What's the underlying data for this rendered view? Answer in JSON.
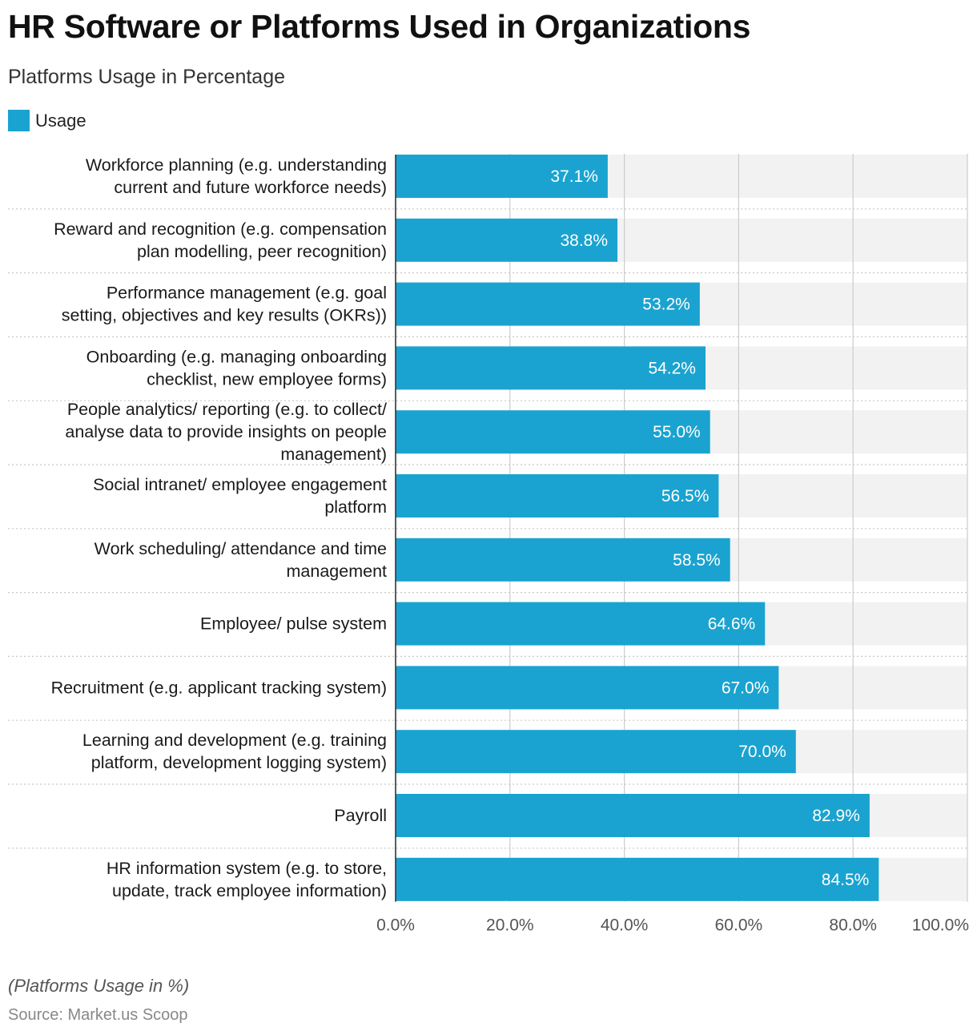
{
  "chart_data": {
    "type": "bar",
    "orientation": "horizontal",
    "title": "HR Software or Platforms Used in Organizations",
    "subtitle": "Platforms Usage in Percentage",
    "categories": [
      [
        "Workforce planning (e.g. understanding",
        "current and future workforce needs)"
      ],
      [
        "Reward and recognition (e.g. compensation",
        "plan modelling, peer recognition)"
      ],
      [
        "Performance management (e.g. goal",
        "setting, objectives and key results (OKRs))"
      ],
      [
        "Onboarding (e.g. managing onboarding",
        "checklist, new employee forms)"
      ],
      [
        "People analytics/ reporting (e.g. to collect/",
        "analyse data to provide insights on people",
        "management)"
      ],
      [
        "Social intranet/ employee engagement",
        "platform"
      ],
      [
        "Work scheduling/ attendance and time",
        "management"
      ],
      [
        "Employee/ pulse system"
      ],
      [
        "Recruitment (e.g. applicant tracking system)"
      ],
      [
        "Learning and development (e.g. training",
        "platform, development logging system)"
      ],
      [
        "Payroll"
      ],
      [
        "HR information system (e.g. to store,",
        "update, track employee information)"
      ]
    ],
    "series": [
      {
        "name": "Usage",
        "color": "#1aa3d0",
        "values": [
          37.1,
          38.8,
          53.2,
          54.2,
          55.0,
          56.5,
          58.5,
          64.6,
          67.0,
          70.0,
          82.9,
          84.5
        ],
        "value_labels": [
          "37.1%",
          "38.8%",
          "53.2%",
          "54.2%",
          "55.0%",
          "56.5%",
          "58.5%",
          "64.6%",
          "67.0%",
          "70.0%",
          "82.9%",
          "84.5%"
        ]
      }
    ],
    "xlim": [
      0,
      100
    ],
    "x_ticks": [
      0,
      20,
      40,
      60,
      80,
      100
    ],
    "x_tick_labels": [
      "0.0%",
      "20.0%",
      "40.0%",
      "60.0%",
      "80.0%",
      "100.0%"
    ],
    "xlabel": "",
    "ylabel": "",
    "grid": true,
    "legend_position": "top-left"
  },
  "footnote": "(Platforms Usage in %)",
  "source": "Source: Market.us Scoop",
  "colors": {
    "bar": "#1aa3d0",
    "track": "#f2f2f2",
    "grid": "#cccccc"
  }
}
